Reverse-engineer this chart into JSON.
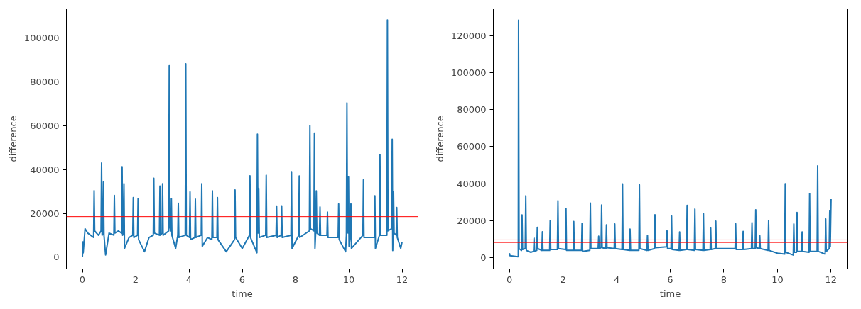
{
  "chart_data": [
    {
      "type": "line",
      "xlabel": "time",
      "ylabel": "difference",
      "xlim": [
        -0.6,
        12.6
      ],
      "ylim": [
        -5400,
        113400
      ],
      "xticks": [
        0,
        2,
        4,
        6,
        8,
        10,
        12
      ],
      "yticks": [
        0,
        20000,
        40000,
        60000,
        80000,
        100000
      ],
      "grid": false,
      "line_style": "solid",
      "marker": "none",
      "ref_lines": [
        {
          "axis": "y",
          "value": 18500,
          "label": null,
          "color": "#ff0000"
        }
      ],
      "series": [
        {
          "color": "#1f77b4",
          "x": [
            0,
            0.02,
            0.03,
            0.1,
            0.2,
            0.42,
            0.44,
            0.46,
            0.6,
            0.7,
            0.72,
            0.74,
            0.77,
            0.79,
            0.81,
            0.87,
            1.0,
            1.18,
            1.2,
            1.22,
            1.35,
            1.47,
            1.49,
            1.51,
            1.54,
            1.56,
            1.58,
            1.75,
            1.89,
            1.91,
            1.93,
            2.07,
            2.09,
            2.11,
            2.33,
            2.5,
            2.66,
            2.68,
            2.7,
            2.89,
            2.91,
            2.93,
            2.99,
            3.01,
            3.03,
            3.24,
            3.26,
            3.28,
            3.32,
            3.34,
            3.36,
            3.5,
            3.58,
            3.6,
            3.62,
            3.86,
            3.88,
            3.9,
            4.02,
            4.04,
            4.06,
            4.22,
            4.24,
            4.26,
            4.46,
            4.48,
            4.5,
            4.7,
            4.86,
            4.88,
            4.9,
            5.05,
            5.07,
            5.09,
            5.4,
            5.71,
            5.73,
            5.75,
            6.0,
            6.27,
            6.29,
            6.31,
            6.55,
            6.57,
            6.59,
            6.6,
            6.62,
            6.64,
            6.88,
            6.9,
            6.92,
            7.27,
            7.29,
            7.31,
            7.46,
            7.48,
            7.5,
            7.83,
            7.85,
            7.87,
            8.12,
            8.14,
            8.16,
            8.52,
            8.54,
            8.56,
            8.69,
            8.71,
            8.73,
            8.76,
            8.78,
            8.8,
            8.9,
            8.92,
            8.94,
            9.18,
            9.2,
            9.22,
            9.6,
            9.62,
            9.64,
            9.88,
            9.91,
            9.93,
            9.95,
            9.97,
            9.99,
            10.01,
            10.06,
            10.08,
            10.1,
            10.53,
            10.55,
            10.57,
            10.96,
            10.98,
            11.0,
            11.15,
            11.17,
            11.19,
            11.43,
            11.45,
            11.47,
            11.61,
            11.63,
            11.65,
            11.66,
            11.68,
            11.7,
            11.78,
            11.8,
            11.82,
            11.95,
            12.0
          ],
          "values": [
            0,
            7000,
            2000,
            13000,
            11000,
            9000,
            30400,
            12000,
            10000,
            12000,
            43000,
            10000,
            11000,
            34300,
            10000,
            1000,
            11000,
            10000,
            28200,
            11000,
            12000,
            11000,
            41300,
            10000,
            11000,
            33500,
            4000,
            9000,
            10000,
            27200,
            9000,
            10000,
            26700,
            8000,
            2500,
            9000,
            10000,
            36000,
            11000,
            10000,
            32500,
            10000,
            11000,
            33500,
            10000,
            12000,
            87400,
            14000,
            12000,
            26700,
            10000,
            4000,
            10000,
            24600,
            9000,
            10000,
            88300,
            10000,
            9000,
            29800,
            8000,
            9000,
            26500,
            9000,
            10000,
            33500,
            5000,
            9000,
            8000,
            30300,
            9000,
            9000,
            27200,
            8000,
            2500,
            8000,
            30700,
            9000,
            4000,
            10000,
            37200,
            9000,
            2000,
            56200,
            12000,
            11000,
            31400,
            9000,
            10000,
            37400,
            9000,
            10000,
            23300,
            9000,
            10000,
            23400,
            9000,
            10000,
            39000,
            4000,
            10000,
            37100,
            9000,
            12000,
            60100,
            13000,
            12000,
            56700,
            4000,
            12000,
            30300,
            11000,
            10000,
            22900,
            10000,
            10000,
            20600,
            9000,
            9000,
            24300,
            8000,
            2500,
            10000,
            70400,
            12000,
            11000,
            36600,
            5000,
            10000,
            24300,
            4000,
            10000,
            35300,
            9000,
            9000,
            28000,
            4000,
            10000,
            46800,
            10000,
            10000,
            108300,
            12000,
            13000,
            53800,
            3000,
            12000,
            30000,
            11000,
            10000,
            22700,
            9000,
            4000,
            7000
          ]
        }
      ]
    },
    {
      "type": "line",
      "xlabel": "time",
      "ylabel": "difference",
      "xlim": [
        -0.6,
        12.6
      ],
      "ylim": [
        -6000,
        134400
      ],
      "xticks": [
        0,
        2,
        4,
        6,
        8,
        10,
        12
      ],
      "yticks": [
        0,
        20000,
        40000,
        60000,
        80000,
        100000,
        120000
      ],
      "grid": false,
      "line_style": "solid",
      "marker": "none",
      "ref_lines": [
        {
          "axis": "y",
          "value": 9700,
          "label": null,
          "color": "#ff0000"
        },
        {
          "axis": "y",
          "value": 8300,
          "label": null,
          "color": "#ff0000"
        }
      ],
      "series": [
        {
          "color": "#1f77b4",
          "x": [
            0,
            0.02,
            0.32,
            0.33,
            0.34,
            0.36,
            0.45,
            0.47,
            0.49,
            0.59,
            0.61,
            0.63,
            0.8,
            0.9,
            0.92,
            0.94,
            1.02,
            1.04,
            1.06,
            1.21,
            1.23,
            1.25,
            1.5,
            1.52,
            1.54,
            1.79,
            1.81,
            1.83,
            2.09,
            2.11,
            2.13,
            2.38,
            2.4,
            2.42,
            2.69,
            2.71,
            2.73,
            3.0,
            3.02,
            3.04,
            3.31,
            3.33,
            3.35,
            3.42,
            3.44,
            3.46,
            3.6,
            3.62,
            3.64,
            3.91,
            3.93,
            3.95,
            4.2,
            4.22,
            4.24,
            4.48,
            4.5,
            4.52,
            4.83,
            4.85,
            4.87,
            5.13,
            5.15,
            5.17,
            5.41,
            5.43,
            5.45,
            5.86,
            5.88,
            5.9,
            6.03,
            6.05,
            6.07,
            6.33,
            6.35,
            6.37,
            6.61,
            6.63,
            6.65,
            6.9,
            6.92,
            6.94,
            7.22,
            7.24,
            7.26,
            7.49,
            7.51,
            7.53,
            7.68,
            7.7,
            7.72,
            8.42,
            8.44,
            8.46,
            8.7,
            8.72,
            8.74,
            9.03,
            9.05,
            9.07,
            9.17,
            9.19,
            9.21,
            9.32,
            9.34,
            9.36,
            9.65,
            9.67,
            9.69,
            10.0,
            10.27,
            10.29,
            10.31,
            10.59,
            10.61,
            10.63,
            10.71,
            10.73,
            10.75,
            10.9,
            10.92,
            10.94,
            11.18,
            11.2,
            11.22,
            11.48,
            11.5,
            11.52,
            11.78,
            11.8,
            11.82,
            11.93,
            11.95,
            11.97,
            12.0
          ],
          "values": [
            2500,
            1200,
            600,
            700,
            128300,
            5000,
            4000,
            23200,
            4500,
            5000,
            33500,
            4000,
            3000,
            3500,
            10600,
            3500,
            4000,
            16500,
            5000,
            4000,
            14100,
            4000,
            4000,
            20100,
            4500,
            4500,
            30800,
            5000,
            4500,
            26600,
            4000,
            4000,
            19600,
            4000,
            4000,
            18600,
            3500,
            4000,
            29600,
            5000,
            5000,
            11700,
            5000,
            5500,
            28500,
            5500,
            5000,
            17800,
            5500,
            5000,
            18300,
            5000,
            4500,
            39900,
            4500,
            4000,
            15500,
            4000,
            4000,
            39400,
            5000,
            4000,
            12200,
            4000,
            5000,
            23300,
            5500,
            6000,
            14600,
            5000,
            5000,
            22600,
            4500,
            4000,
            14000,
            4000,
            4500,
            28300,
            4500,
            4000,
            26300,
            4500,
            4000,
            23800,
            4000,
            4500,
            16100,
            4500,
            5000,
            19800,
            5000,
            5000,
            18400,
            4500,
            4500,
            14300,
            4500,
            5000,
            19000,
            5000,
            5000,
            25900,
            5500,
            5000,
            12000,
            5000,
            4000,
            20200,
            4000,
            2500,
            2000,
            40000,
            3000,
            1500,
            18300,
            3000,
            3000,
            24500,
            3500,
            3500,
            14000,
            3500,
            3000,
            34600,
            3500,
            3500,
            49700,
            3500,
            2000,
            21000,
            3500,
            5000,
            25300,
            6000,
            31700
          ]
        }
      ]
    }
  ]
}
